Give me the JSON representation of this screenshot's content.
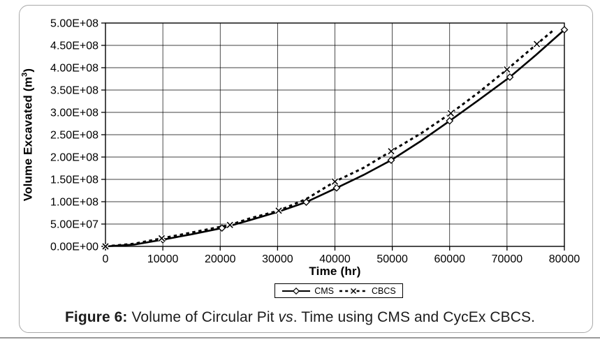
{
  "caption": {
    "prefix": "Figure 6:",
    "mid": "Volume of Circular Pit",
    "vs": "vs",
    "tail": ". Time using CMS and CycEx CBCS."
  },
  "chart_data": {
    "type": "line",
    "title": "",
    "xlabel": "Time (hr)",
    "ylabel": {
      "base": "Volume Excavated (m",
      "sup": "3",
      "close": ")"
    },
    "xlim": [
      0,
      80000
    ],
    "ylim": [
      0,
      500000000
    ],
    "grid": true,
    "legend_position": "bottom-center",
    "x_ticks": {
      "values": [
        0,
        10000,
        20000,
        30000,
        40000,
        50000,
        60000,
        70000,
        80000
      ],
      "labels": [
        "0",
        "10000",
        "20000",
        "30000",
        "40000",
        "50000",
        "60000",
        "70000",
        "80000"
      ]
    },
    "y_ticks": {
      "values": [
        0,
        50000000.0,
        100000000.0,
        150000000.0,
        200000000.0,
        250000000.0,
        300000000.0,
        350000000.0,
        400000000.0,
        450000000.0,
        500000000.0
      ],
      "labels": [
        "0.00E+00",
        "5.00E+07",
        "1.00E+08",
        "1.50E+08",
        "2.00E+08",
        "2.50E+08",
        "3.00E+08",
        "3.50E+08",
        "4.00E+08",
        "4.50E+08",
        "5.00E+08"
      ]
    },
    "series": [
      {
        "name": "CMS",
        "line": "solid",
        "marker": "diamond",
        "curve": [
          [
            0,
            0
          ],
          [
            5000,
            4000000.0
          ],
          [
            10000,
            15000000.0
          ],
          [
            15000,
            27000000.0
          ],
          [
            20300,
            41000000.0
          ],
          [
            25000,
            58000000.0
          ],
          [
            30000,
            77000000.0
          ],
          [
            35000,
            99000000.0
          ],
          [
            40300,
            131000000.0
          ],
          [
            45000,
            160000000.0
          ],
          [
            49800,
            193000000.0
          ],
          [
            55000,
            236000000.0
          ],
          [
            60000,
            281000000.0
          ],
          [
            65000,
            327000000.0
          ],
          [
            70500,
            379000000.0
          ],
          [
            75000,
            428000000.0
          ],
          [
            80000,
            485000000.0
          ]
        ],
        "markers": [
          [
            0,
            0
          ],
          [
            10000,
            15000000.0
          ],
          [
            20300,
            41000000.0
          ],
          [
            35000,
            99000000.0
          ],
          [
            40300,
            131000000.0
          ],
          [
            49800,
            193000000.0
          ],
          [
            60000,
            281000000.0
          ],
          [
            70500,
            379000000.0
          ],
          [
            80000,
            485000000.0
          ]
        ]
      },
      {
        "name": "CBCS",
        "line": "dashed",
        "marker": "x",
        "curve": [
          [
            0,
            0
          ],
          [
            5000,
            6000000.0
          ],
          [
            9800,
            18000000.0
          ],
          [
            15000,
            31000000.0
          ],
          [
            21700,
            48000000.0
          ],
          [
            25000,
            62000000.0
          ],
          [
            30200,
            80000000.0
          ],
          [
            35000,
            106000000.0
          ],
          [
            40000,
            145000000.0
          ],
          [
            45000,
            176000000.0
          ],
          [
            49800,
            213000000.0
          ],
          [
            55000,
            253000000.0
          ],
          [
            60200,
            298000000.0
          ],
          [
            65000,
            344000000.0
          ],
          [
            70000,
            396000000.0
          ],
          [
            75200,
            453000000.0
          ],
          [
            78000,
            483000000.0
          ]
        ],
        "markers": [
          [
            0,
            0
          ],
          [
            9800,
            18000000.0
          ],
          [
            21700,
            48000000.0
          ],
          [
            30200,
            80000000.0
          ],
          [
            40000,
            145000000.0
          ],
          [
            49800,
            213000000.0
          ],
          [
            60200,
            298000000.0
          ],
          [
            70000,
            396000000.0
          ],
          [
            75200,
            453000000.0
          ]
        ]
      }
    ]
  }
}
